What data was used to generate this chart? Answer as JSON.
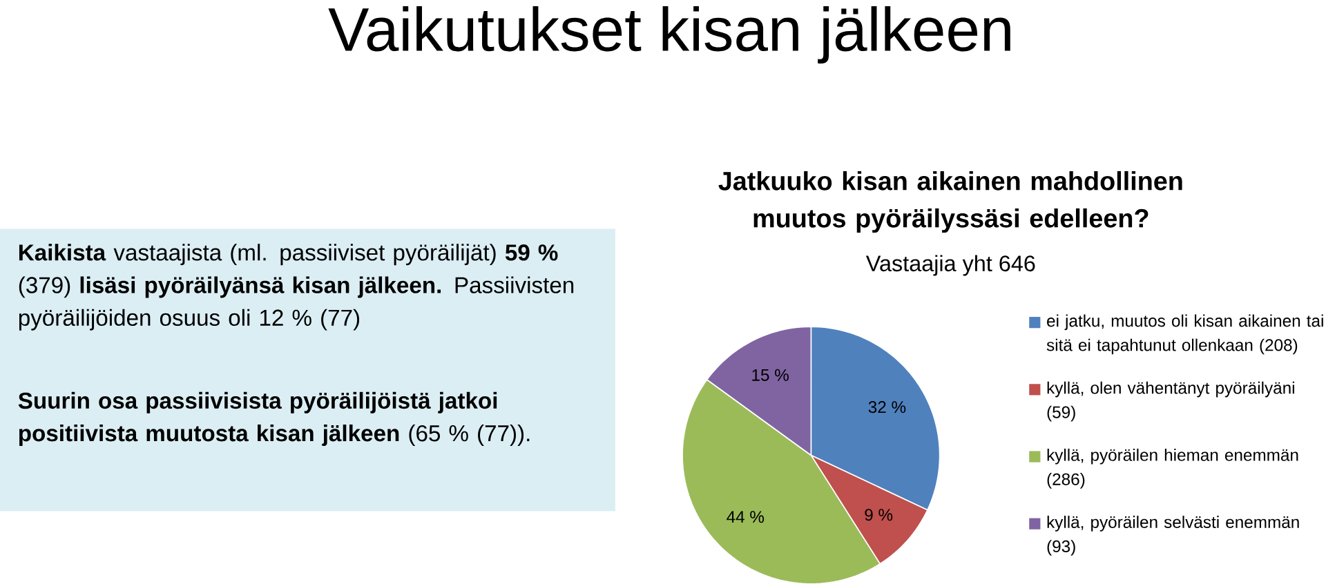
{
  "chart_data": {
    "type": "pie",
    "title": "Jatkuuko kisan aikainen mahdollinen muutos pyöräilyssäsi edelleen?",
    "subtitle": "Vastaajia yht 646",
    "annotations": [
      "Vaikutukset kisan jälkeen",
      "**Kaikista** vastaajista (ml. passiiviset pyöräilijät) **59 %** (379) **lisäsi pyöräilyänsä kisan jälkeen.** Passiivisten pyöräilijöiden osuus oli 12 % (77)",
      "**Suurin osa passiivisista pyöräilijöistä jatkoi positiivista muutosta kisan jälkeen** (65 % (77))."
    ],
    "categories": [
      "ei jatku, muutos oli kisan aikainen tai sitä ei tapahtunut ollenkaan (208)",
      "kyllä, olen vähentänyt pyöräilyäni (59)",
      "kyllä, pyöräilen hieman enemmän (286)",
      "kyllä, pyöräilen selvästi enemmän (93)"
    ],
    "values": [
      32,
      9,
      44,
      15
    ],
    "value_labels": [
      "32 %",
      "9 %",
      "44 %",
      "15 %"
    ],
    "colors": [
      "#4f81bd",
      "#c0504d",
      "#9bbb59",
      "#8064a2"
    ],
    "legend": "right"
  }
}
